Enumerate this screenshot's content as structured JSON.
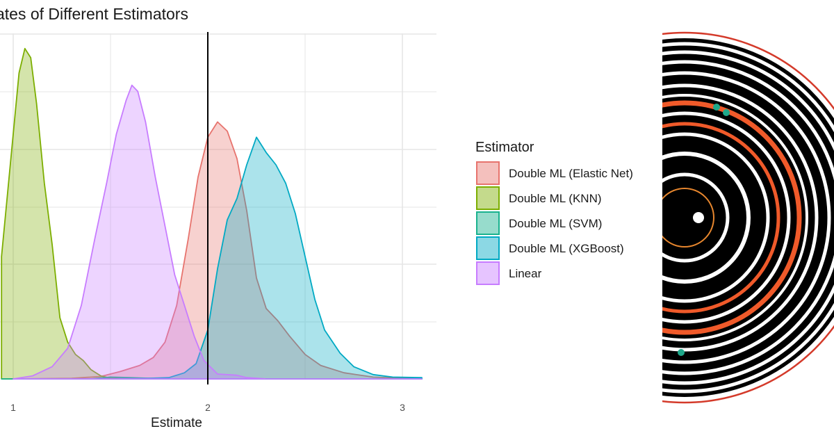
{
  "chart_data": {
    "type": "area",
    "title": "ates of Different Estimators",
    "xlabel": "Estimate",
    "ylabel": "",
    "xlim": [
      0.94,
      3.18
    ],
    "ylim": [
      0,
      5.4
    ],
    "x_ticks": [
      1,
      2,
      3
    ],
    "x_tick_labels": [
      "1",
      "2",
      "3"
    ],
    "reference_line_x": 2,
    "grid": true,
    "legend": {
      "title": "Estimator",
      "position": "right"
    },
    "series": [
      {
        "name": "Double ML (Elastic Net)",
        "color": "#E7736D",
        "points": [
          [
            1.0,
            0
          ],
          [
            1.3,
            0.01
          ],
          [
            1.45,
            0.04
          ],
          [
            1.55,
            0.12
          ],
          [
            1.65,
            0.22
          ],
          [
            1.72,
            0.35
          ],
          [
            1.78,
            0.6
          ],
          [
            1.84,
            1.2
          ],
          [
            1.9,
            2.3
          ],
          [
            1.95,
            3.3
          ],
          [
            2.0,
            3.95
          ],
          [
            2.05,
            4.2
          ],
          [
            2.1,
            4.05
          ],
          [
            2.15,
            3.6
          ],
          [
            2.2,
            2.75
          ],
          [
            2.25,
            1.65
          ],
          [
            2.3,
            1.15
          ],
          [
            2.36,
            0.95
          ],
          [
            2.42,
            0.7
          ],
          [
            2.5,
            0.4
          ],
          [
            2.58,
            0.22
          ],
          [
            2.7,
            0.1
          ],
          [
            2.85,
            0.03
          ],
          [
            3.1,
            0
          ]
        ]
      },
      {
        "name": "Double ML (KNN)",
        "color": "#7CAE00",
        "points": [
          [
            0.94,
            2.0
          ],
          [
            0.97,
            3.0
          ],
          [
            1.0,
            4.0
          ],
          [
            1.03,
            5.0
          ],
          [
            1.06,
            5.4
          ],
          [
            1.09,
            5.25
          ],
          [
            1.12,
            4.5
          ],
          [
            1.16,
            3.2
          ],
          [
            1.2,
            2.2
          ],
          [
            1.24,
            1.0
          ],
          [
            1.28,
            0.6
          ],
          [
            1.32,
            0.4
          ],
          [
            1.36,
            0.3
          ],
          [
            1.4,
            0.15
          ],
          [
            1.45,
            0.05
          ],
          [
            1.5,
            0.01
          ],
          [
            1.6,
            0
          ],
          [
            3.1,
            0
          ]
        ]
      },
      {
        "name": "Double ML (SVM)",
        "color": "#19B28E",
        "points": [
          [
            0.94,
            0
          ],
          [
            1.4,
            0
          ],
          [
            1.5,
            0.03
          ],
          [
            1.6,
            0.02
          ],
          [
            1.7,
            0.01
          ],
          [
            1.8,
            0
          ],
          [
            3.1,
            0
          ]
        ]
      },
      {
        "name": "Double ML (XGBoost)",
        "color": "#00A9C3",
        "points": [
          [
            1.0,
            0
          ],
          [
            1.6,
            0
          ],
          [
            1.8,
            0.02
          ],
          [
            1.88,
            0.1
          ],
          [
            1.94,
            0.25
          ],
          [
            2.0,
            0.8
          ],
          [
            2.05,
            1.8
          ],
          [
            2.1,
            2.6
          ],
          [
            2.15,
            2.95
          ],
          [
            2.2,
            3.5
          ],
          [
            2.25,
            3.95
          ],
          [
            2.3,
            3.7
          ],
          [
            2.35,
            3.5
          ],
          [
            2.4,
            3.2
          ],
          [
            2.45,
            2.7
          ],
          [
            2.5,
            2.0
          ],
          [
            2.55,
            1.3
          ],
          [
            2.6,
            0.8
          ],
          [
            2.68,
            0.42
          ],
          [
            2.75,
            0.2
          ],
          [
            2.85,
            0.07
          ],
          [
            2.95,
            0.03
          ],
          [
            3.1,
            0.02
          ]
        ]
      },
      {
        "name": "Linear",
        "color": "#C77CFF",
        "points": [
          [
            1.0,
            0
          ],
          [
            1.1,
            0.05
          ],
          [
            1.2,
            0.2
          ],
          [
            1.28,
            0.5
          ],
          [
            1.35,
            1.2
          ],
          [
            1.42,
            2.3
          ],
          [
            1.48,
            3.2
          ],
          [
            1.53,
            4.0
          ],
          [
            1.58,
            4.55
          ],
          [
            1.61,
            4.8
          ],
          [
            1.64,
            4.7
          ],
          [
            1.68,
            4.2
          ],
          [
            1.73,
            3.3
          ],
          [
            1.78,
            2.5
          ],
          [
            1.83,
            1.7
          ],
          [
            1.88,
            1.2
          ],
          [
            1.93,
            0.7
          ],
          [
            1.98,
            0.3
          ],
          [
            2.05,
            0.08
          ],
          [
            2.15,
            0.06
          ],
          [
            2.2,
            0.02
          ],
          [
            2.3,
            0
          ],
          [
            3.1,
            0
          ]
        ]
      }
    ]
  },
  "colors": {
    "grid": "#E6E6E6",
    "vline": "#000000",
    "decor_ring": "#D43A2A",
    "decor_dot": "#1FA88A"
  }
}
